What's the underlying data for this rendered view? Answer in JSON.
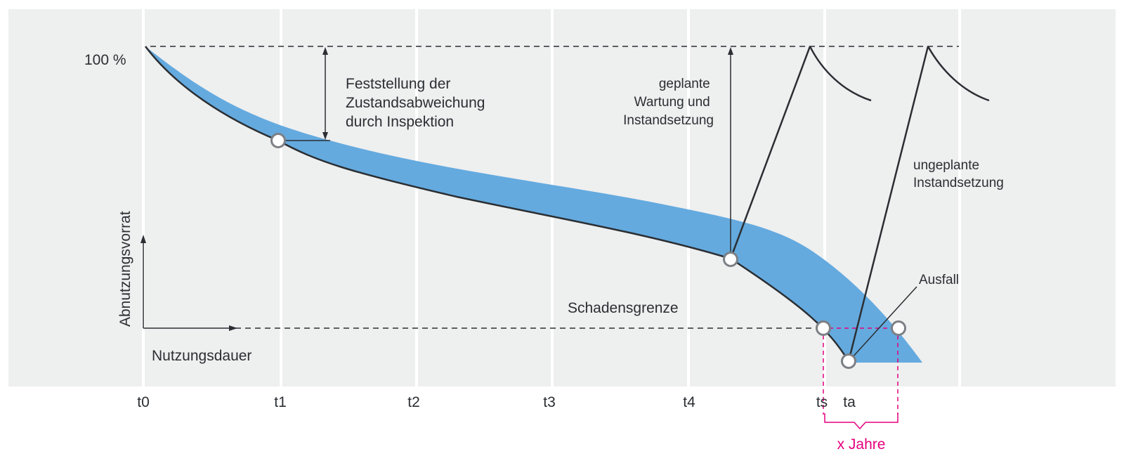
{
  "colors": {
    "panel": "#eeefef",
    "band": "#64aadf",
    "line": "#2b2f33",
    "accent": "#e4007d",
    "marker_fill": "#ffffff",
    "marker_stroke": "#7c8085"
  },
  "axis": {
    "y_label": "Abnutzungsvorrat",
    "x_label": "Nutzungsdauer",
    "y_100": "100 %"
  },
  "ticks": [
    "t0",
    "t1",
    "t2",
    "t3",
    "t4",
    "ts",
    "ta"
  ],
  "annotations": {
    "inspection": [
      "Feststellung der",
      "Zustandsabweichung",
      "durch Inspektion"
    ],
    "planned": [
      "geplante",
      "Wartung und",
      "Instandsetzung"
    ],
    "unplanned": [
      "ungeplante",
      "Instandsetzung"
    ],
    "failure": "Ausfall",
    "damage_limit": "Schadensgrenze",
    "x_years": "x Jahre"
  }
}
